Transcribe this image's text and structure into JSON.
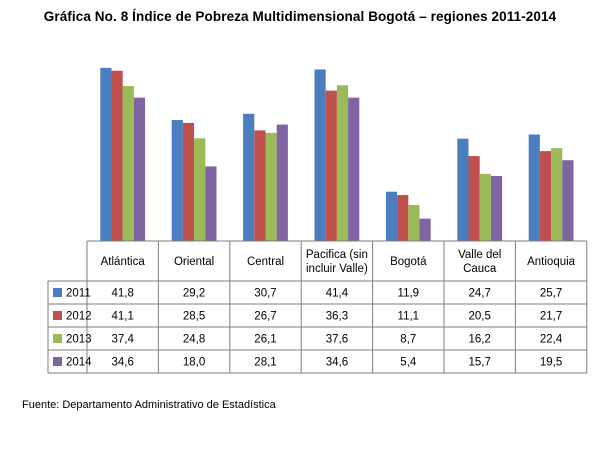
{
  "title": "Gráfica No. 8 Índice de Pobreza Multidimensional Bogotá – regiones 2011-2014",
  "source": "Fuente: Departamento Administrativo de Estadística",
  "chart_data": {
    "type": "bar",
    "categories": [
      "Atlántica",
      "Oriental",
      "Central",
      "Pacifica (sin incluir Valle)",
      "Bogotá",
      "Valle del Cauca",
      "Antioquia"
    ],
    "category_lines": [
      [
        "Atlántica"
      ],
      [
        "Oriental"
      ],
      [
        "Central"
      ],
      [
        "Pacifica (sin",
        "incluir Valle)"
      ],
      [
        "Bogotá"
      ],
      [
        "Valle del",
        "Cauca"
      ],
      [
        "Antioquia"
      ]
    ],
    "series": [
      {
        "name": "2011",
        "color": "#4a7ebf",
        "values": [
          41.8,
          29.2,
          30.7,
          41.4,
          11.9,
          24.7,
          25.7
        ],
        "labels": [
          "41,8",
          "29,2",
          "30,7",
          "41,4",
          "11,9",
          "24,7",
          "25,7"
        ]
      },
      {
        "name": "2012",
        "color": "#c0504d",
        "values": [
          41.1,
          28.5,
          26.7,
          36.3,
          11.1,
          20.5,
          21.7
        ],
        "labels": [
          "41,1",
          "28,5",
          "26,7",
          "36,3",
          "11,1",
          "20,5",
          "21,7"
        ]
      },
      {
        "name": "2013",
        "color": "#9bbb59",
        "values": [
          37.4,
          24.8,
          26.1,
          37.6,
          8.7,
          16.2,
          22.4
        ],
        "labels": [
          "37,4",
          "24,8",
          "26,1",
          "37,6",
          "8,7",
          "16,2",
          "22,4"
        ]
      },
      {
        "name": "2014",
        "color": "#8064a2",
        "values": [
          34.6,
          18.0,
          28.1,
          34.6,
          5.4,
          15.7,
          19.5
        ],
        "labels": [
          "34,6",
          "18,0",
          "28,1",
          "34,6",
          "5,4",
          "15,7",
          "19,5"
        ]
      }
    ],
    "ylim": [
      0,
      42
    ],
    "legend": "data-table",
    "grid": false
  }
}
